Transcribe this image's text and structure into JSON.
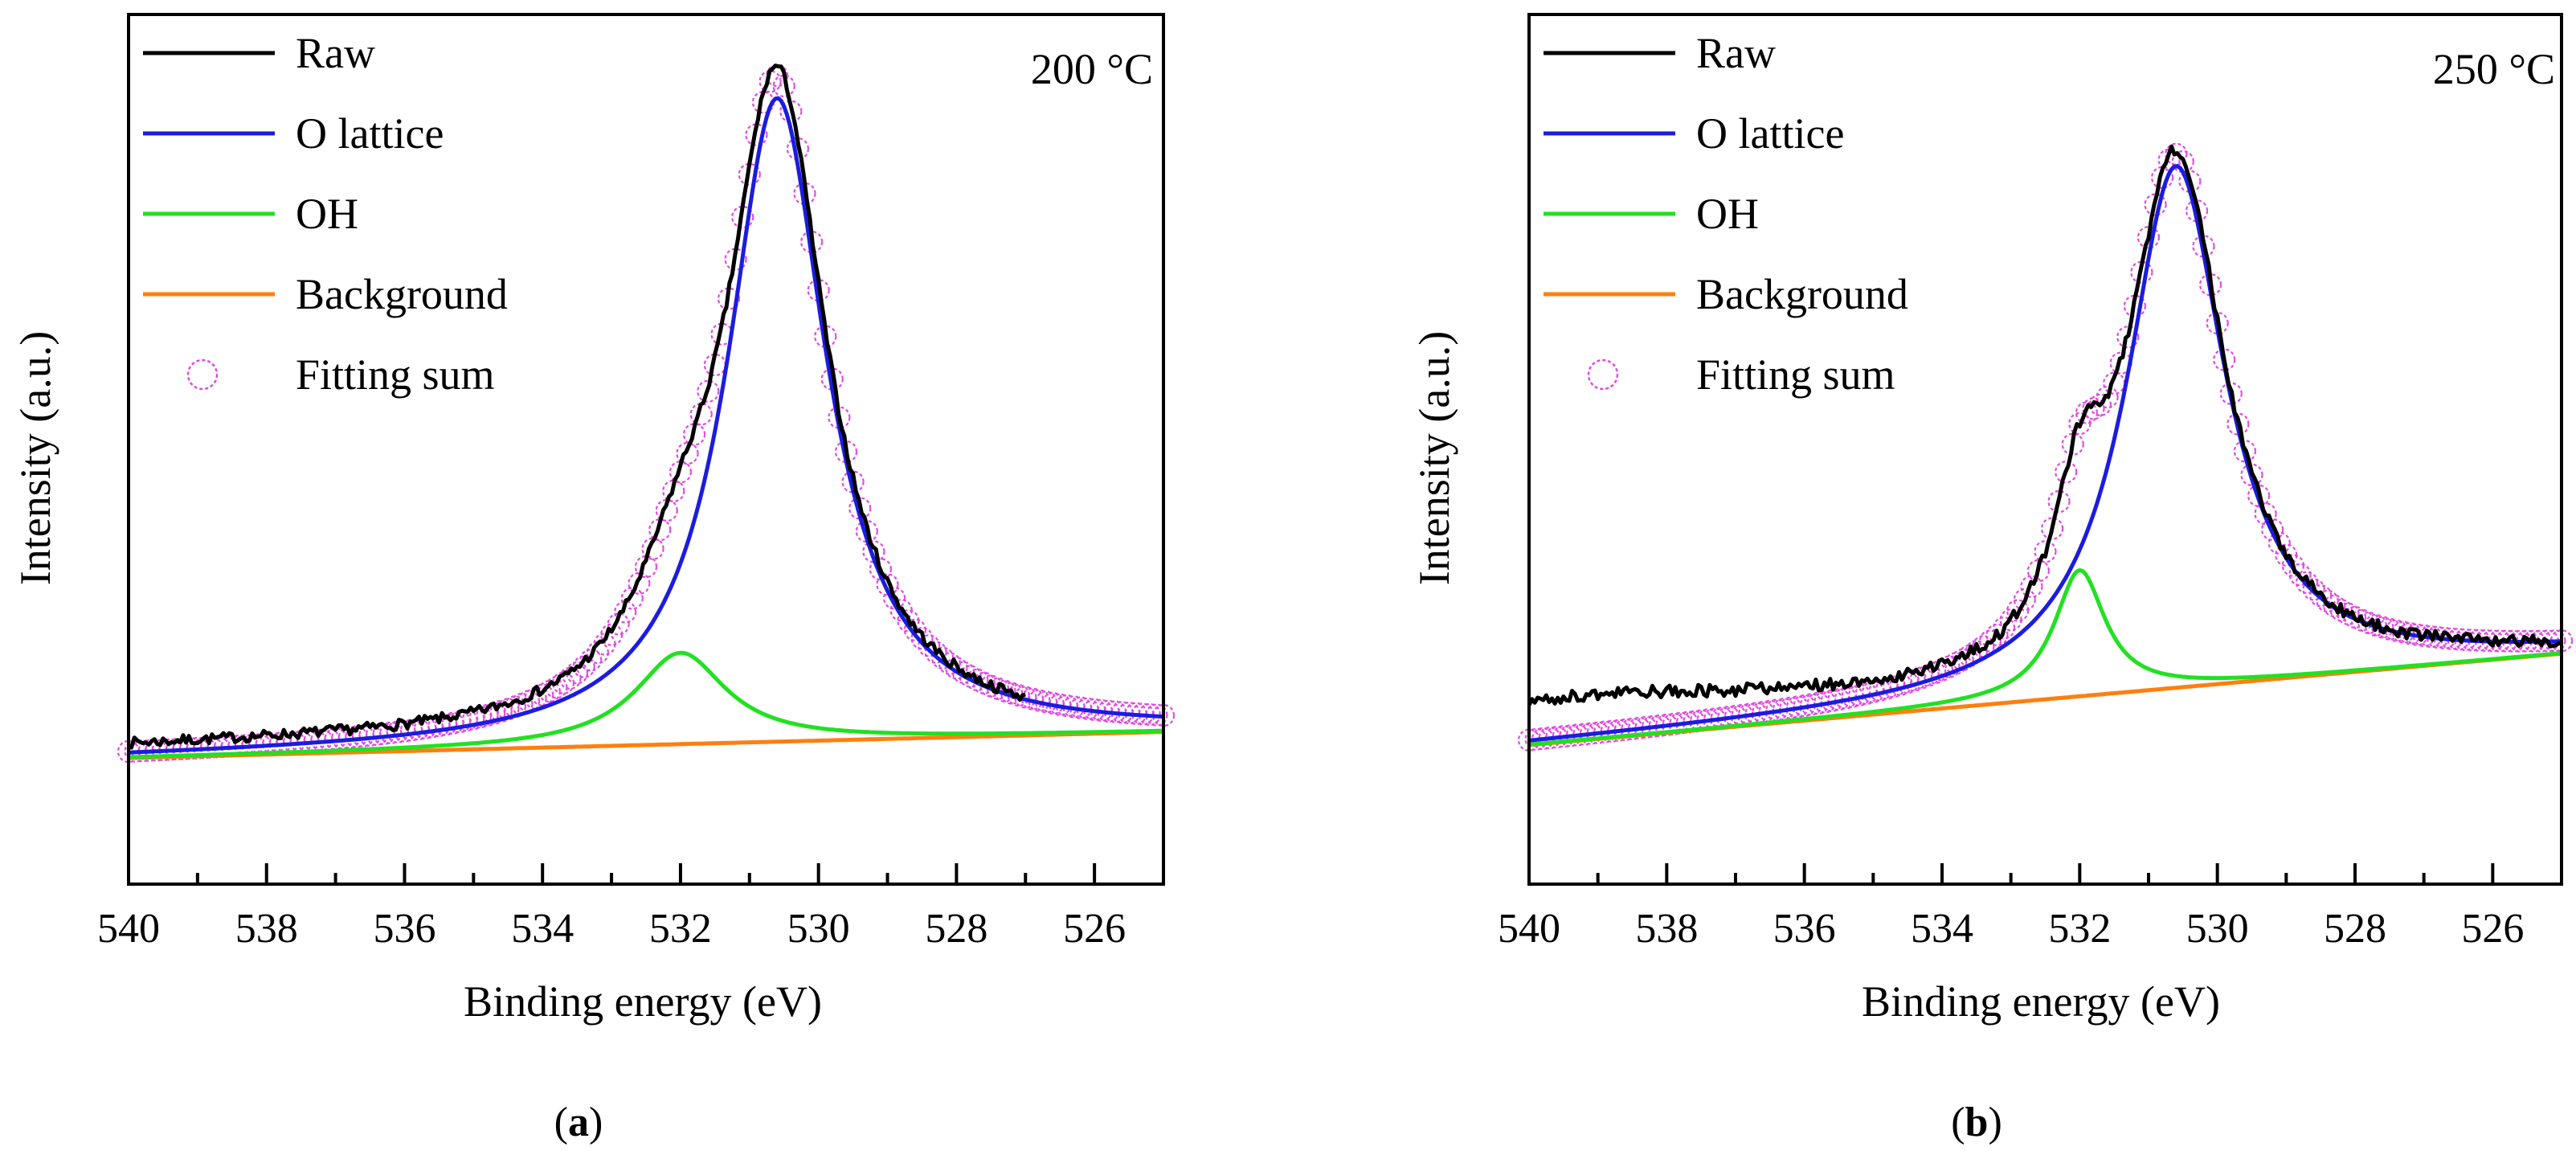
{
  "figure": {
    "panels": [
      {
        "id": "a",
        "caption_open": "(",
        "caption_letter": "a",
        "caption_close": ")"
      },
      {
        "id": "b",
        "caption_open": "(",
        "caption_letter": "b",
        "caption_close": ")"
      }
    ]
  },
  "colors": {
    "raw": "#000000",
    "o_lattice": "#1c1ce0",
    "oh": "#22e022",
    "background": "#ff7f0e",
    "fitting_sum": "#e04be0"
  },
  "chart_data": [
    {
      "type": "line",
      "panel": "a",
      "annotation": "200 °C",
      "xlabel": "Binding energy (eV)",
      "ylabel": "Intensity (a.u.)",
      "xlim": [
        540,
        525
      ],
      "ylim": [
        0,
        1
      ],
      "x_ticks": [
        540,
        538,
        536,
        534,
        532,
        530,
        528,
        526
      ],
      "legend": [
        "Raw",
        "O lattice",
        "OH",
        "Background",
        "Fitting sum"
      ],
      "legend_position": "top-left",
      "background_line": {
        "start": [
          540,
          0.145
        ],
        "end": [
          525,
          0.175
        ]
      },
      "o_lattice_peak": {
        "center": 530.6,
        "height": 0.74,
        "fwhm": 1.75
      },
      "oh_peak": {
        "center": 532.0,
        "height": 0.105,
        "fwhm": 1.6
      },
      "raw_noise": 0.006,
      "raw_offset": {
        "x_start": 540,
        "x_end": 527,
        "value": 0.01
      },
      "raw_end_x": 527.0
    },
    {
      "type": "line",
      "panel": "b",
      "annotation": "250 °C",
      "xlabel": "Binding energy (eV)",
      "ylabel": "Intensity (a.u.)",
      "xlim": [
        540,
        525
      ],
      "ylim": [
        0,
        1
      ],
      "x_ticks": [
        540,
        538,
        536,
        534,
        532,
        530,
        528,
        526
      ],
      "legend": [
        "Raw",
        "O lattice",
        "OH",
        "Background",
        "Fitting sum"
      ],
      "legend_position": "top-left",
      "background_line": {
        "start": [
          540,
          0.16
        ],
        "end": [
          525,
          0.265
        ]
      },
      "o_lattice_peak": {
        "center": 530.6,
        "height": 0.6,
        "fwhm": 1.75
      },
      "oh_peak": {
        "center": 532.0,
        "height": 0.145,
        "fwhm": 0.9
      },
      "raw_noise": 0.007,
      "raw_offset": {
        "x_start": 540,
        "x_end": 533.2,
        "value": 0.045
      },
      "raw_end_x": 525.0
    }
  ]
}
